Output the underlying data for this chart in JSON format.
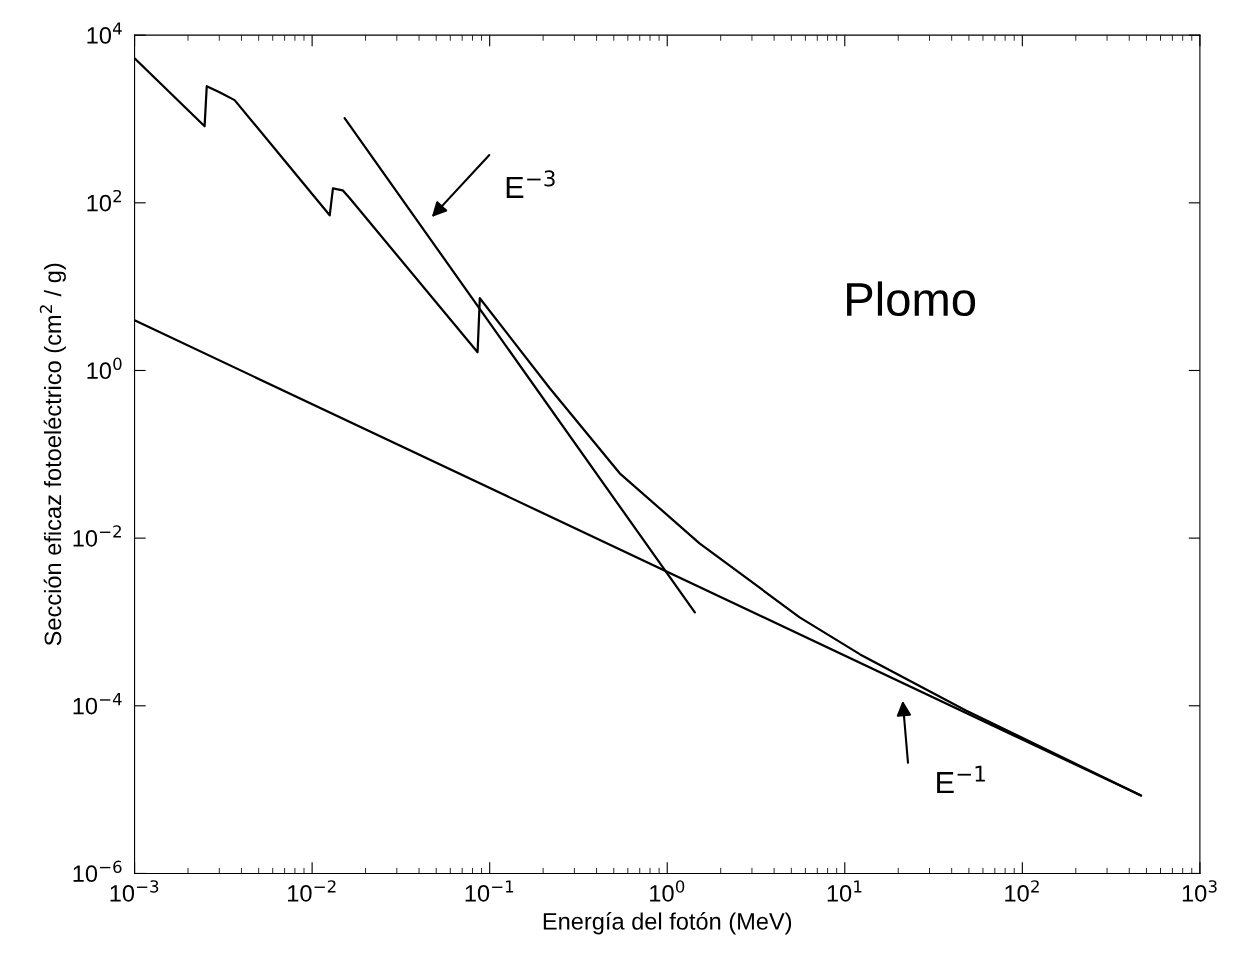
{
  "chart_data": {
    "type": "line",
    "xlabel": "Energía del fotón (MeV)",
    "ylabel": "Sección eficaz fotoeléctrico (cm$^{2}$ / g)",
    "log": "xy",
    "grid": false,
    "marker": "none",
    "line_style": "solid",
    "xlim": [
      0.001,
      1000
    ],
    "ylim": [
      1e-06,
      10000
    ],
    "xticks": [
      {
        "value": 0.001,
        "label": "10$^{−3}$"
      },
      {
        "value": 0.01,
        "label": "10$^{−2}$"
      },
      {
        "value": 0.1,
        "label": "10$^{−1}$"
      },
      {
        "value": 1,
        "label": "10$^{0}$"
      },
      {
        "value": 10,
        "label": "10$^{1}$"
      },
      {
        "value": 100,
        "label": "10$^{2}$"
      },
      {
        "value": 1000,
        "label": "10$^{3}$"
      }
    ],
    "yticks": [
      {
        "value": 1e-06,
        "label": "10$^{−6}$"
      },
      {
        "value": 0.0001,
        "label": "10$^{−4}$"
      },
      {
        "value": 0.01,
        "label": "10$^{−2}$"
      },
      {
        "value": 1,
        "label": "10$^{0}$"
      },
      {
        "value": 100,
        "label": "10$^{2}$"
      },
      {
        "value": 10000,
        "label": "10$^{4}$"
      }
    ],
    "series": [
      {
        "color": "#000000",
        "x": [
          0.001,
          0.00248,
          0.00255,
          0.00301,
          0.00366,
          0.01256,
          0.0131,
          0.01486,
          0.01625,
          0.0855,
          0.088,
          0.218,
          0.54,
          1.52,
          5.57,
          12.2,
          48.1,
          466
        ],
        "values": [
          5300,
          820,
          2460,
          2090,
          1680,
          71,
          149,
          141,
          114,
          1.65,
          7.28,
          0.614,
          0.0593,
          0.00867,
          0.001135,
          0.00041,
          8.8e-05,
          8.5e-06
        ]
      },
      {
        "color": "#000000",
        "x": [
          0.01524,
          1.43
        ],
        "values": [
          1023,
          0.0013
        ]
      },
      {
        "color": "#000000",
        "x": [
          0.001,
          466
        ],
        "values": [
          3.97,
          8.5e-06
        ]
      }
    ],
    "annotations": [
      "E$^{−3}$",
      "E$^{−1}$",
      "Plomo"
    ]
  }
}
